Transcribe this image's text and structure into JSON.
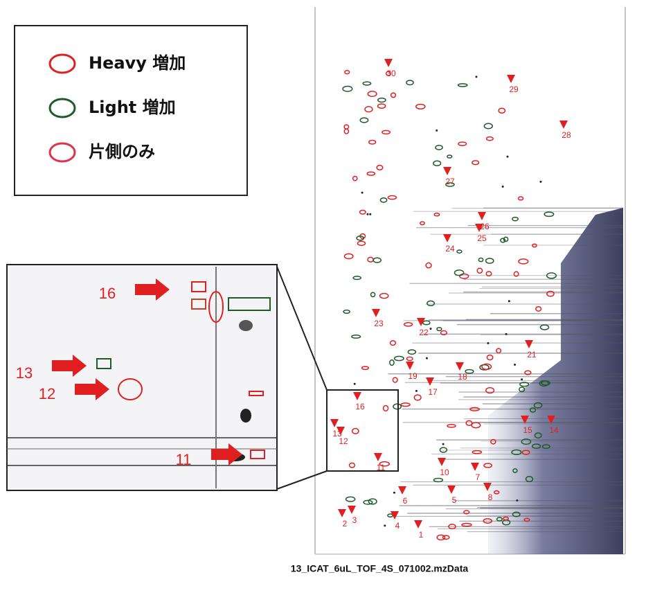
{
  "legend": {
    "items": [
      {
        "label": "Heavy 増加",
        "color": "#e02020"
      },
      {
        "label": "Light 増加",
        "color": "#1e5a2a"
      },
      {
        "label": "片側のみ",
        "color": "#e0304a"
      }
    ]
  },
  "spot_labels": [
    "30",
    "29",
    "28",
    "27",
    "26",
    "25",
    "24",
    "23",
    "22",
    "21",
    "19",
    "18",
    "17",
    "16",
    "15",
    "14",
    "13",
    "12",
    "11",
    "10",
    "8",
    "7",
    "6",
    "5",
    "4",
    "3",
    "2",
    "1"
  ],
  "inset_labels": [
    "16",
    "13",
    "12",
    "11"
  ],
  "caption": "13_ICAT_6uL_TOF_4S_071002.mzData"
}
